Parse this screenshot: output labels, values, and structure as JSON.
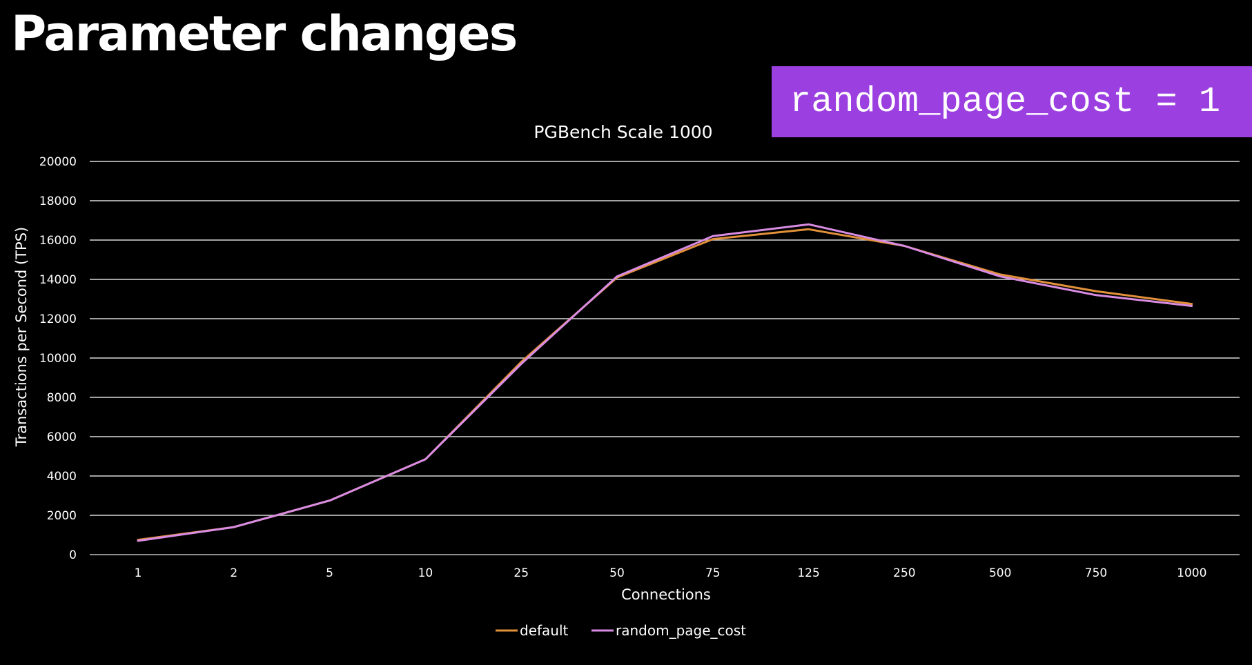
{
  "slide": {
    "title": "Parameter changes",
    "param_label": "random_page_cost = 1",
    "param_color": "#9b3fe0"
  },
  "chart_data": {
    "type": "line",
    "title": "PGBench Scale 1000",
    "xlabel": "Connections",
    "ylabel": "Transactions per Second (TPS)",
    "categories": [
      "1",
      "2",
      "5",
      "10",
      "25",
      "50",
      "75",
      "125",
      "250",
      "500",
      "750",
      "1000"
    ],
    "ylim": [
      0,
      20000
    ],
    "yticks": [
      0,
      2000,
      4000,
      6000,
      8000,
      10000,
      12000,
      14000,
      16000,
      18000,
      20000
    ],
    "grid": true,
    "legend_position": "bottom",
    "series": [
      {
        "name": "default",
        "color": "#e2913a",
        "values": [
          750,
          1400,
          2750,
          4850,
          9800,
          14100,
          16050,
          16550,
          15700,
          14250,
          13400,
          12750
        ]
      },
      {
        "name": "random_page_cost",
        "color": "#d98ce3",
        "values": [
          700,
          1400,
          2750,
          4850,
          9700,
          14150,
          16200,
          16800,
          15700,
          14150,
          13200,
          12650
        ]
      }
    ]
  }
}
